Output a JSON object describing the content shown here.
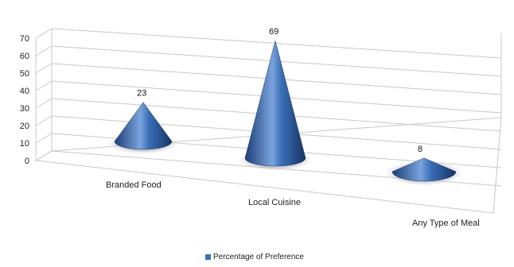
{
  "chart_data": {
    "type": "bar",
    "title": "",
    "xlabel": "",
    "ylabel": "",
    "categories": [
      "Branded Food",
      "Local Cuisine",
      "Any Type of Meal"
    ],
    "series": [
      {
        "name": "Percentage of Preference",
        "values": [
          23,
          69,
          8
        ]
      }
    ],
    "data_labels": [
      "23",
      "69",
      "8"
    ],
    "y_ticks": [
      "0",
      "10",
      "20",
      "30",
      "40",
      "50",
      "60",
      "70"
    ],
    "ylim": [
      0,
      70
    ],
    "grid": true,
    "legend_position": "bottom",
    "style": "3d-cone",
    "colors": {
      "cone": "#3a6fb7",
      "cone_dark": "#1d3f78",
      "cone_light": "#8fb3e6",
      "grid": "#c8c8c8"
    }
  }
}
